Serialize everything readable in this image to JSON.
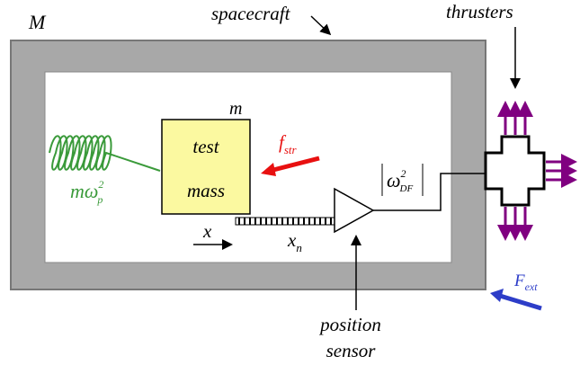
{
  "labels": {
    "spacecraft_mass": "M",
    "spacecraft": "spacecraft",
    "thrusters": "thrusters",
    "test_mass_symbol": "m",
    "test_mass_line1": "test",
    "test_mass_line2": "mass",
    "stray_force": {
      "base": "f",
      "sub": "str"
    },
    "spring": {
      "base": "mω",
      "sup": "2",
      "sub": "p"
    },
    "displacement": "x",
    "sensor_noise": {
      "base": "x",
      "sub": "n"
    },
    "controller": {
      "base": "ω",
      "sup": "2",
      "sub": "DF"
    },
    "sensor_line1": "position",
    "sensor_line2": "sensor",
    "external_force": {
      "base": "F",
      "sub": "ext"
    }
  }
}
